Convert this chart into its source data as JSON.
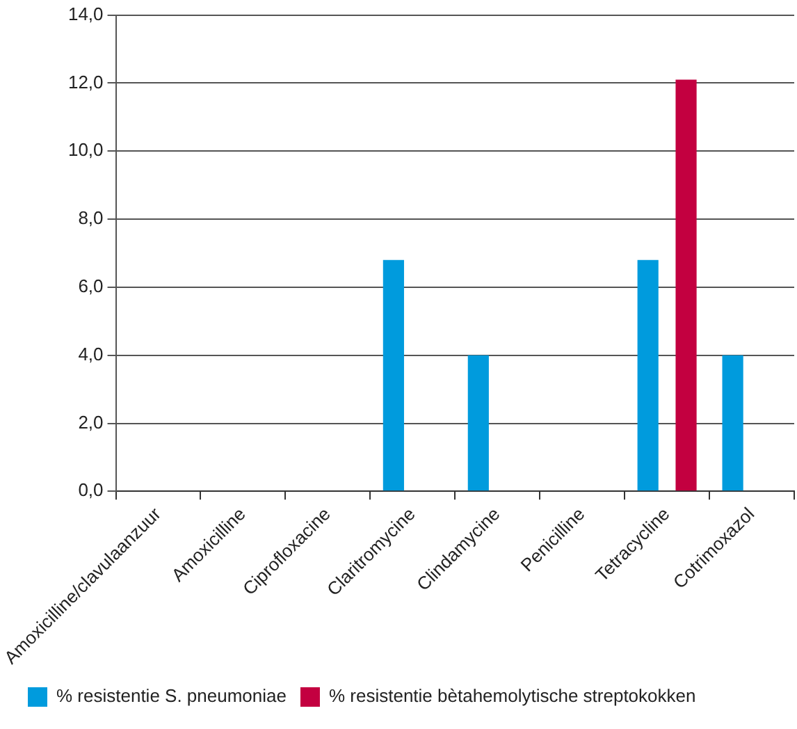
{
  "chart_data": {
    "type": "bar",
    "categories": [
      "Amoxicilline/clavulaanzuur",
      "Amoxicilline",
      "Ciprofloxacine",
      "Claritromycine",
      "Clindamycine",
      "Penicilline",
      "Tetracycline",
      "Cotrimoxazol"
    ],
    "series": [
      {
        "name": "% resistentie S. pneumoniae",
        "color": "#009bdd",
        "values": [
          0,
          0,
          0,
          6.8,
          4.0,
          0,
          6.8,
          4.0
        ]
      },
      {
        "name": "% resistentie bètahemolytische streptokokken",
        "color": "#c30040",
        "values": [
          0,
          0,
          0,
          0,
          0,
          0,
          12.1,
          0
        ]
      }
    ],
    "ylim": [
      0,
      14
    ],
    "yticks": [
      {
        "value": 0,
        "label": "0,0"
      },
      {
        "value": 2,
        "label": "2,0"
      },
      {
        "value": 4,
        "label": "4,0"
      },
      {
        "value": 6,
        "label": "6,0"
      },
      {
        "value": 8,
        "label": "8,0"
      },
      {
        "value": 10,
        "label": "10,0"
      },
      {
        "value": 12,
        "label": "12,0"
      },
      {
        "value": 14,
        "label": "14,0"
      }
    ],
    "grid": "y",
    "legend": "bottom"
  }
}
